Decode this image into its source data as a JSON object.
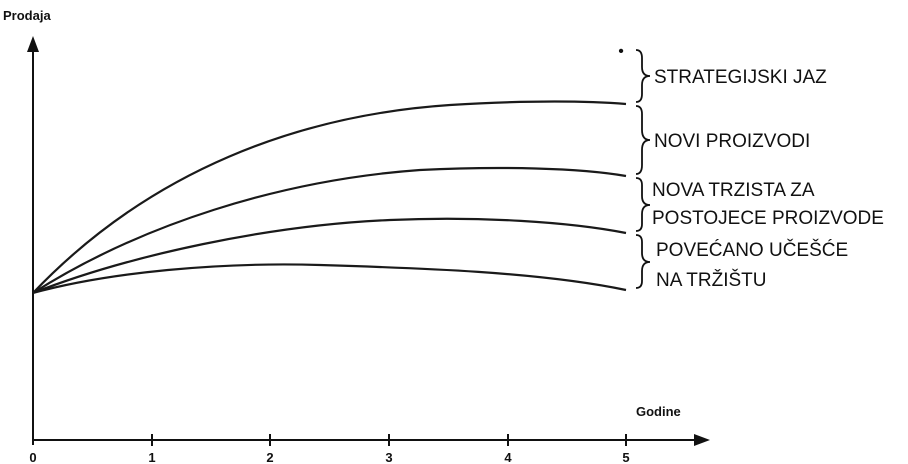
{
  "figure": {
    "y_axis_title": "Prodaja",
    "x_axis_title": "Godine",
    "x_ticks": [
      "0",
      "1",
      "2",
      "3",
      "4",
      "5"
    ],
    "gap_labels": [
      {
        "lines": [
          "STRATEGIJSKI JAZ"
        ]
      },
      {
        "lines": [
          "NOVI PROIZVODI"
        ]
      },
      {
        "lines": [
          "NOVA TRZISTA ZA",
          "POSTOJECE PROIZVODE"
        ]
      },
      {
        "lines": [
          "POVEĆANO UČEŠĆE",
          "NA TRŽIŠTU"
        ]
      }
    ],
    "target_marker": "•"
  }
}
